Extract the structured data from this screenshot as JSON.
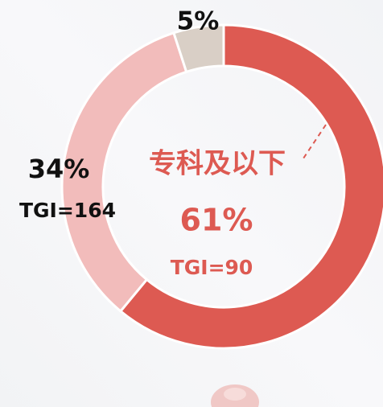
{
  "chart_data": {
    "type": "pie",
    "categories": [
      "专科及以下",
      null,
      null
    ],
    "values": [
      61,
      34,
      5
    ],
    "value_labels": [
      "61%",
      "34%",
      "5%"
    ],
    "tgi_labels": [
      "TGI=90",
      "TGI=164",
      null
    ],
    "colors": [
      "#dd5a52",
      "#f2bcbb",
      "#d9cfc6"
    ]
  }
}
